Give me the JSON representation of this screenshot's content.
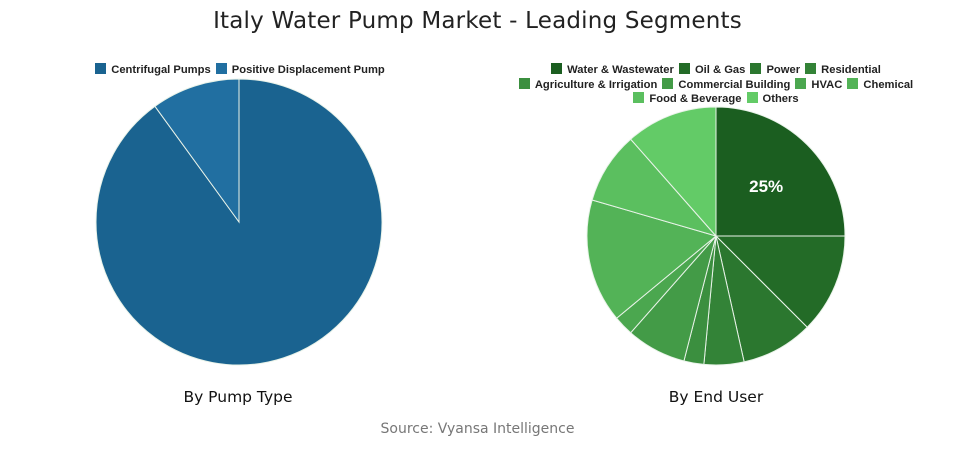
{
  "title": "Italy Water Pump Market - Leading Segments",
  "source": "Source: Vyansa Intelligence",
  "chart_data": [
    {
      "type": "pie",
      "title": "By Pump Type",
      "categories": [
        "Centrifugal Pumps",
        "Positive Displacement Pump"
      ],
      "values": [
        90,
        10
      ],
      "colors": [
        "#1a6390",
        "#216fa1"
      ],
      "data_labels": [],
      "legend_position": "top"
    },
    {
      "type": "pie",
      "title": "By End User",
      "categories": [
        "Water & Wastewater",
        "Oil & Gas",
        "Power",
        "Residential",
        "Agriculture & Irrigation",
        "Commercial Building",
        "HVAC",
        "Chemical",
        "Food & Beverage",
        "Others"
      ],
      "values": [
        25,
        12.5,
        9,
        5,
        2.5,
        7.5,
        2.5,
        15.5,
        9,
        11.5
      ],
      "colors": [
        "#1b5e20",
        "#236b27",
        "#2b772f",
        "#338337",
        "#3b8f3f",
        "#439b47",
        "#4ba74f",
        "#53b357",
        "#5bbf5f",
        "#63cb67"
      ],
      "data_labels": [
        "25%",
        "",
        "",
        "",
        "",
        "",
        "",
        "",
        "",
        ""
      ],
      "legend_position": "top"
    }
  ]
}
